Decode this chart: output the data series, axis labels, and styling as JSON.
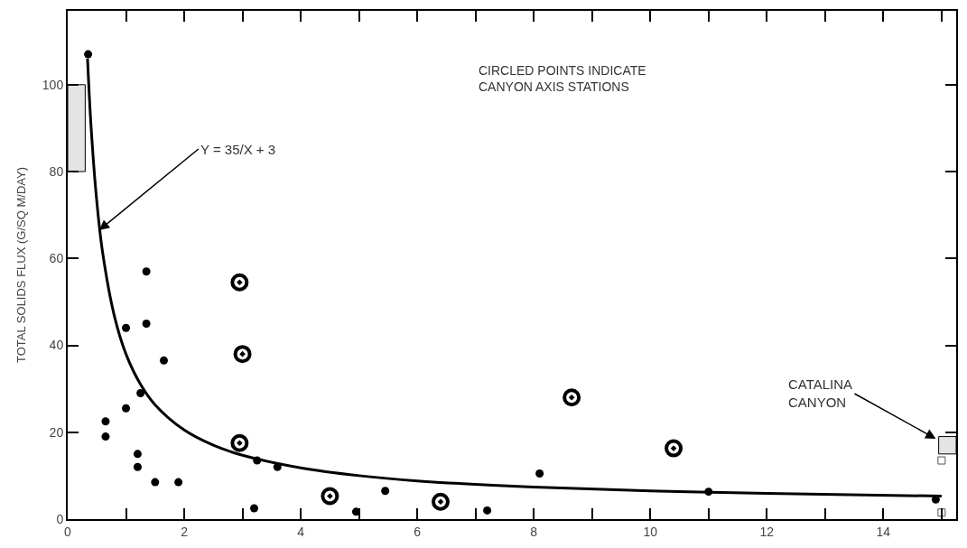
{
  "chart_data": {
    "type": "scatter",
    "ylabel": "TOTAL SOLIDS FLUX (G/SQ M/DAY)",
    "xlim": [
      0,
      15.25
    ],
    "ylim": [
      0,
      117
    ],
    "xticks": [
      0,
      {
        "value": 1,
        "label": null
      },
      2,
      {
        "value": 3,
        "label": null
      },
      4,
      {
        "value": 5,
        "label": null
      },
      6,
      {
        "value": 7,
        "label": null
      },
      8,
      {
        "value": 9,
        "label": null
      },
      10,
      {
        "value": 11,
        "label": null
      },
      12,
      {
        "value": 13,
        "label": null
      },
      14,
      {
        "value": 15,
        "label": null
      }
    ],
    "yticks": [
      0,
      20,
      40,
      60,
      80,
      100
    ],
    "series": [
      {
        "marker": "circle",
        "color": "#000000",
        "x": [
          0.35,
          1.35,
          1.0,
          1.35,
          1.65,
          1.25,
          1.0,
          0.65,
          0.65,
          1.2,
          1.2,
          1.5,
          1.9,
          3.25,
          3.6,
          3.2,
          4.95,
          5.45,
          7.2,
          8.1,
          11.0,
          14.9
        ],
        "values": [
          107,
          57,
          44,
          45,
          36.5,
          29,
          25.5,
          22.5,
          19,
          15,
          12,
          8.5,
          8.5,
          13.5,
          12,
          2.5,
          1.7,
          6.5,
          2,
          10.5,
          6.3,
          4.5
        ]
      },
      {
        "marker": "circled",
        "color": "#000000",
        "x": [
          2.95,
          3.0,
          2.95,
          4.5,
          6.4,
          8.65,
          10.4
        ],
        "values": [
          54.5,
          38,
          17.5,
          5.3,
          4,
          28,
          16.3
        ]
      },
      {
        "type": "line",
        "color": "#000000",
        "x": [
          0.34,
          0.4,
          0.5,
          0.6,
          0.8,
          1,
          1.25,
          1.5,
          2,
          2.5,
          3,
          4,
          5,
          6,
          8,
          10,
          12,
          15
        ],
        "values": [
          106,
          90.5,
          73,
          61.3,
          46.8,
          38,
          31,
          26.3,
          20.5,
          17,
          14.7,
          11.8,
          10,
          8.8,
          7.4,
          6.5,
          5.9,
          5.3
        ]
      },
      {
        "type": "bar",
        "color": "#e4e4e4",
        "x": [
          0.15,
          15.1
        ],
        "base": [
          80,
          15
        ],
        "values": [
          20,
          4
        ]
      },
      {
        "marker": "square",
        "color": "#ffffff",
        "x": [
          15.0,
          15.0
        ],
        "values": [
          13.5,
          1.5
        ]
      }
    ],
    "annotations": [
      {
        "text": "Y = 35/X + 3",
        "x": 0.54,
        "y": 66.5
      },
      "CIRCLED POINTS INDICATE\nCANYON AXIS STATIONS",
      {
        "text": "CATALINA\nCANYON",
        "x": 14.9,
        "y": 18.5
      }
    ]
  }
}
